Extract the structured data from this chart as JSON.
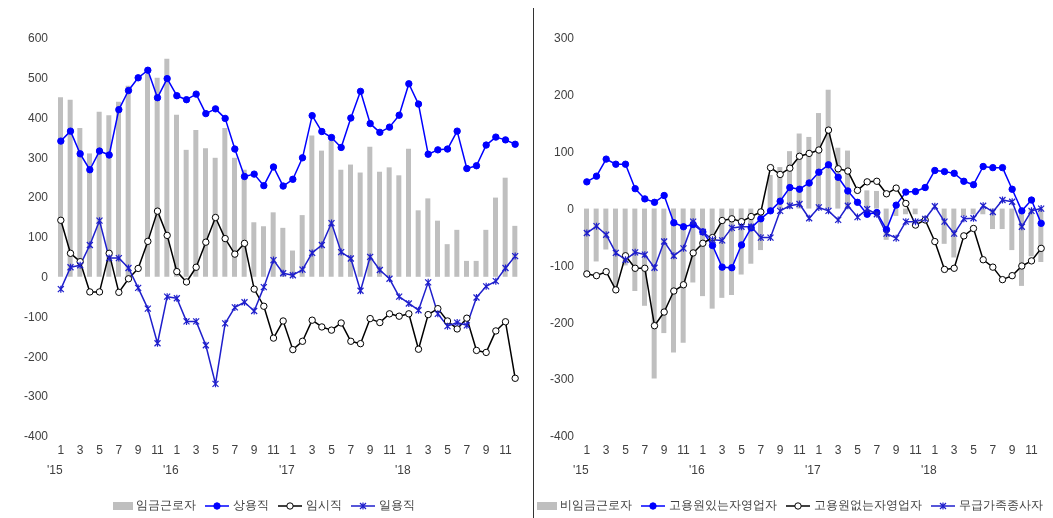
{
  "chart_data": [
    {
      "type": "bar",
      "categories": [
        "1\n'15",
        null,
        "3",
        null,
        "5",
        null,
        "7",
        null,
        "9",
        null,
        "11",
        null,
        "1\n'16",
        null,
        "3",
        null,
        "5",
        null,
        "7",
        null,
        "9",
        null,
        "11",
        null,
        "1\n'17",
        null,
        "3",
        null,
        "5",
        null,
        "7",
        null,
        "9",
        null,
        "11",
        null,
        "1\n'18",
        null,
        "3",
        null,
        "5",
        null,
        "7",
        null,
        "9",
        null,
        "11",
        null
      ],
      "series": [
        {
          "name": "임금근로자",
          "color": "#bfbfbf",
          "values": [
            451,
            445,
            374,
            310,
            415,
            406,
            440,
            480,
            null,
            510,
            500,
            548,
            407,
            319,
            369,
            323,
            299,
            374,
            299,
            269,
            137,
            127,
            162,
            123,
            66,
            155,
            355,
            317,
            342,
            269,
            282,
            262,
            327,
            264,
            275,
            255,
            322,
            167,
            197,
            141,
            82,
            118,
            40,
            40,
            118,
            199,
            249,
            128
          ]
        },
        {
          "name": "상용직",
          "type": "line",
          "marker": "circle",
          "color": "#0000ff",
          "values": [
            341,
            366,
            309,
            269,
            316,
            306,
            420,
            468,
            500,
            519,
            450,
            498,
            455,
            445,
            459,
            410,
            422,
            398,
            321,
            252,
            258,
            229,
            276,
            228,
            245,
            299,
            405,
            365,
            350,
            325,
            399,
            466,
            385,
            363,
            376,
            406,
            485,
            434,
            308,
            319,
            321,
            366,
            272,
            279,
            331,
            351,
            344,
            333
          ]
        },
        {
          "name": "임시직",
          "type": "line",
          "marker": "circle",
          "color": "#000000",
          "values": [
            142,
            59,
            38,
            -38,
            -38,
            59,
            -39,
            -5,
            21,
            89,
            165,
            104,
            13,
            -13,
            24,
            87,
            149,
            96,
            57,
            84,
            -31,
            -74,
            -154,
            -111,
            -183,
            -162,
            -109,
            -126,
            -134,
            -116,
            -162,
            -168,
            -105,
            -115,
            -93,
            -99,
            -93,
            -182,
            -95,
            -80,
            -111,
            -131,
            -104,
            -185,
            -190,
            -136,
            -113,
            -255
          ]
        },
        {
          "name": "일용직",
          "type": "line",
          "marker": "cross",
          "color": "#1f1fcc",
          "values": [
            -31,
            24,
            29,
            80,
            141,
            47,
            47,
            22,
            -28,
            -80,
            -167,
            -50,
            -54,
            -112,
            -112,
            -172,
            -269,
            -117,
            -77,
            -64,
            -86,
            -26,
            42,
            9,
            4,
            18,
            60,
            80,
            135,
            62,
            46,
            -35,
            50,
            17,
            -5,
            -50,
            -67,
            -84,
            -14,
            -93,
            -124,
            -115,
            -122,
            -52,
            -24,
            -11,
            22,
            52
          ]
        }
      ],
      "ylim": [
        -400,
        600
      ],
      "yticks": [
        -400,
        -300,
        -200,
        -100,
        0,
        100,
        200,
        300,
        400,
        500,
        600
      ],
      "grid": false,
      "legend": "bottom"
    },
    {
      "type": "bar",
      "categories": [
        "1\n'15",
        null,
        "3",
        null,
        "5",
        null,
        "7",
        null,
        "9",
        null,
        "11",
        null,
        "1\n'16",
        null,
        "3",
        null,
        "5",
        null,
        "7",
        null,
        "9",
        null,
        "11",
        null,
        "1\n'17",
        null,
        "3",
        null,
        "5",
        null,
        "7",
        null,
        "9",
        null,
        "11",
        null,
        "1\n'18",
        null,
        "3",
        null,
        "5",
        null,
        "7",
        null,
        "9",
        null,
        "11",
        null
      ],
      "series": [
        {
          "name": "비임금근로자",
          "color": "#bfbfbf",
          "values": [
            -118,
            -93,
            -72,
            -145,
            -100,
            -145,
            -171,
            -299,
            -219,
            -253,
            -236,
            -130,
            -154,
            -176,
            -157,
            -152,
            -116,
            -97,
            -73,
            59,
            73,
            101,
            132,
            126,
            168,
            209,
            107,
            102,
            null,
            32,
            31,
            -55,
            -13,
            -10,
            -10,
            null,
            null,
            -62,
            -86,
            -13,
            -10,
            -10,
            -36,
            -36,
            -73,
            -136,
            -84,
            -94
          ]
        },
        {
          "name": "고용원있는자영업자",
          "type": "line",
          "marker": "circle",
          "color": "#0000ff",
          "values": [
            47,
            57,
            87,
            78,
            78,
            35,
            17,
            11,
            23,
            -25,
            -32,
            -28,
            -41,
            -65,
            -103,
            -104,
            -64,
            -34,
            -18,
            -4,
            13,
            37,
            34,
            45,
            64,
            77,
            55,
            31,
            11,
            -10,
            -7,
            -37,
            6,
            29,
            30,
            37,
            67,
            65,
            62,
            48,
            42,
            74,
            72,
            72,
            34,
            -4,
            15,
            -26
          ]
        },
        {
          "name": "고용원없는자영업자",
          "type": "line",
          "marker": "circle",
          "color": "#000000",
          "values": [
            -115,
            -118,
            -111,
            -143,
            -83,
            -105,
            -105,
            -206,
            -182,
            -145,
            -134,
            -78,
            -61,
            -51,
            -21,
            -18,
            -23,
            -14,
            -6,
            72,
            60,
            71,
            92,
            97,
            103,
            138,
            70,
            66,
            32,
            47,
            48,
            26,
            36,
            9,
            -29,
            -20,
            -58,
            -107,
            -105,
            -48,
            -35,
            -90,
            -103,
            -125,
            -118,
            -101,
            -92,
            -70
          ]
        },
        {
          "name": "무급가족종사자",
          "type": "line",
          "marker": "cross",
          "color": "#1f1fcc",
          "values": [
            -43,
            -31,
            -46,
            -78,
            -90,
            -77,
            -81,
            -104,
            -58,
            -83,
            -70,
            -23,
            -41,
            -55,
            -56,
            -34,
            -32,
            -32,
            -51,
            -51,
            -4,
            5,
            8,
            -17,
            2,
            -4,
            -20,
            5,
            -15,
            -1,
            -10,
            -44,
            -52,
            -23,
            -23,
            -18,
            4,
            -23,
            -44,
            -18,
            -17,
            5,
            -6,
            15,
            12,
            -32,
            -4,
            0
          ]
        }
      ],
      "ylim": [
        -400,
        300
      ],
      "yticks": [
        -400,
        -300,
        -200,
        -100,
        0,
        100,
        200,
        300
      ],
      "grid": false,
      "legend": "bottom"
    }
  ]
}
